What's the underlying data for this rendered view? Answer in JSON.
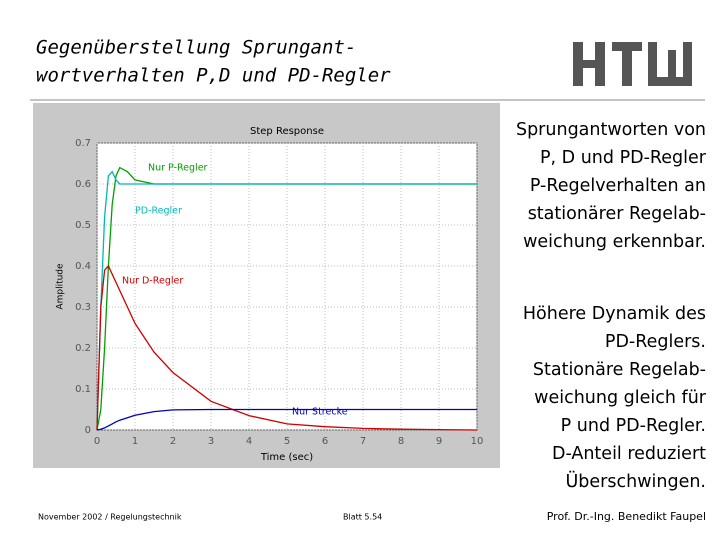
{
  "slide": {
    "title": [
      "Gegenüberstellung Sprungant-",
      "wortverhalten P,D und PD-Regler"
    ],
    "text_blocks": [
      [
        "Sprungantworten von",
        "P, D und PD-Regler",
        "P-Regelverhalten an",
        "stationärer Regelab-",
        "weichung erkennbar."
      ],
      [
        "Höhere Dynamik des",
        "PD-Reglers.",
        "Stationäre Regelab-",
        "weichung gleich für",
        "P und PD-Regler.",
        "D-Anteil reduziert",
        "Überschwingen."
      ]
    ],
    "footer_left": "November 2002 / Regelungstechnik",
    "footer_center": "Blatt 5.54",
    "footer_right": "Prof. Dr.-Ing. Benedikt Faupel"
  },
  "chart_data": {
    "type": "line",
    "title": "Step Response",
    "xlabel": "Time (sec)",
    "ylabel": "Amplitude",
    "x": [
      0,
      0.1,
      0.2,
      0.3,
      0.4,
      0.5,
      0.6,
      0.8,
      1,
      1.5,
      2,
      3,
      4,
      5,
      6,
      7,
      8,
      9,
      10
    ],
    "series": [
      {
        "name": "Nur P-Regler",
        "color": "#00a000",
        "values": [
          0,
          0.05,
          0.2,
          0.4,
          0.55,
          0.62,
          0.64,
          0.63,
          0.61,
          0.6,
          0.6,
          0.6,
          0.6,
          0.6,
          0.6,
          0.6,
          0.6,
          0.6,
          0.6
        ]
      },
      {
        "name": "PD-Regler",
        "color": "#00b8b8",
        "values": [
          0,
          0.3,
          0.52,
          0.62,
          0.63,
          0.61,
          0.6,
          0.6,
          0.6,
          0.6,
          0.6,
          0.6,
          0.6,
          0.6,
          0.6,
          0.6,
          0.6,
          0.6,
          0.6
        ]
      },
      {
        "name": "Nur D-Regler",
        "color": "#d00000",
        "values": [
          0,
          0.3,
          0.39,
          0.4,
          0.38,
          0.36,
          0.34,
          0.3,
          0.26,
          0.19,
          0.14,
          0.07,
          0.035,
          0.015,
          0.008,
          0.004,
          0.002,
          0.001,
          0
        ]
      },
      {
        "name": "Nur Strecke",
        "color": "#0000c0",
        "values": [
          0,
          0.002,
          0.005,
          0.01,
          0.015,
          0.02,
          0.024,
          0.03,
          0.036,
          0.045,
          0.049,
          0.05,
          0.05,
          0.05,
          0.05,
          0.05,
          0.05,
          0.05,
          0.05
        ]
      }
    ],
    "xlim": [
      0,
      10
    ],
    "ylim": [
      0,
      0.7
    ],
    "xticks": [
      0,
      1,
      2,
      3,
      4,
      5,
      6,
      7,
      8,
      9,
      10
    ],
    "yticks": [
      0,
      0.1,
      0.2,
      0.3,
      0.4,
      0.5,
      0.6,
      0.7
    ],
    "grid": true
  }
}
